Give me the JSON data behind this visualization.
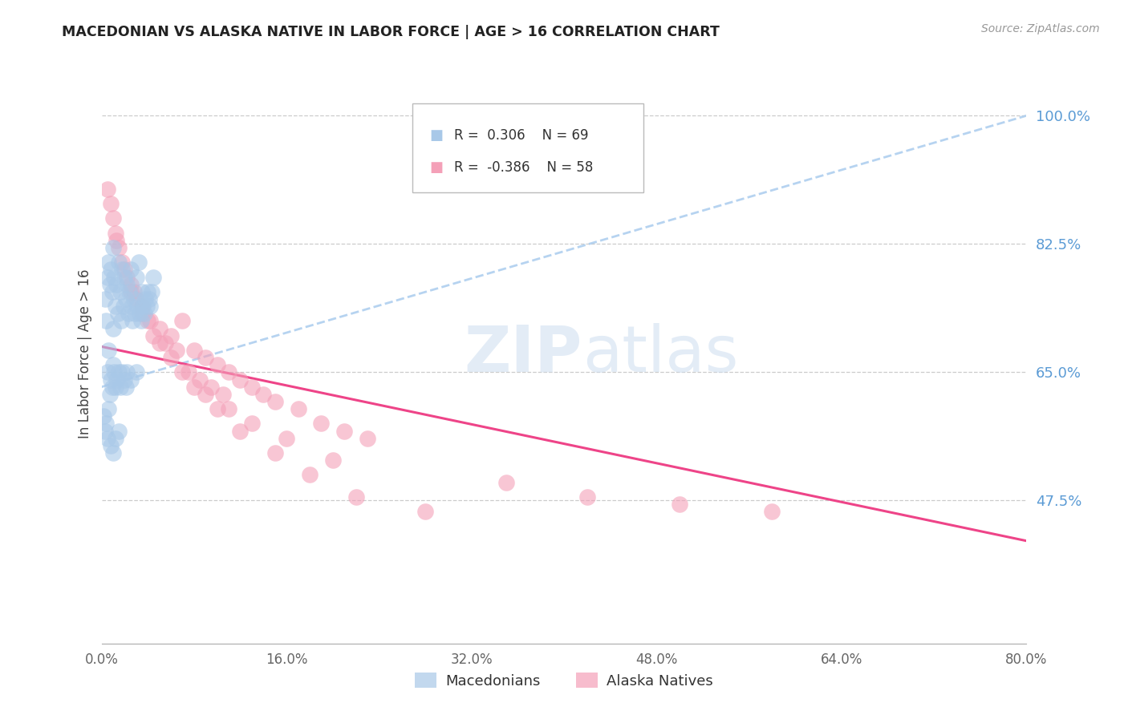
{
  "title": "MACEDONIAN VS ALASKA NATIVE IN LABOR FORCE | AGE > 16 CORRELATION CHART",
  "source": "Source: ZipAtlas.com",
  "ylabel": "In Labor Force | Age > 16",
  "watermark_zip": "ZIP",
  "watermark_atlas": "atlas",
  "xmin": 0.0,
  "xmax": 80.0,
  "ymin": 28.0,
  "ymax": 107.0,
  "yticks": [
    47.5,
    65.0,
    82.5,
    100.0
  ],
  "xticks": [
    0.0,
    16.0,
    32.0,
    48.0,
    64.0,
    80.0
  ],
  "xtick_labels": [
    "0.0%",
    "16.0%",
    "32.0%",
    "48.0%",
    "64.0%",
    "80.0%"
  ],
  "macedonian_color": "#a8c8e8",
  "alaska_color": "#f4a0b8",
  "macedonian_line_color": "#3366cc",
  "alaska_line_color": "#ee4488",
  "r_macedonian": "0.306",
  "n_macedonian": "69",
  "r_alaska": "-0.386",
  "n_alaska": "58",
  "macedonian_label": "Macedonians",
  "alaska_label": "Alaska Natives",
  "axis_label_color": "#5b9bd5",
  "mac_trend_x0": 0.0,
  "mac_trend_y0": 63.0,
  "mac_trend_x1": 80.0,
  "mac_trend_y1": 100.0,
  "alaska_trend_x0": 0.0,
  "alaska_trend_y0": 68.5,
  "alaska_trend_x1": 80.0,
  "alaska_trend_y1": 42.0,
  "macedonians_x": [
    0.3,
    0.4,
    0.5,
    0.5,
    0.6,
    0.6,
    0.7,
    0.7,
    0.8,
    0.8,
    0.9,
    0.9,
    1.0,
    1.0,
    1.0,
    1.1,
    1.1,
    1.2,
    1.2,
    1.3,
    1.3,
    1.4,
    1.5,
    1.5,
    1.6,
    1.6,
    1.7,
    1.8,
    1.8,
    1.9,
    2.0,
    2.0,
    2.1,
    2.1,
    2.2,
    2.2,
    2.3,
    2.4,
    2.5,
    2.5,
    2.6,
    2.7,
    2.8,
    2.9,
    3.0,
    3.0,
    3.1,
    3.2,
    3.3,
    3.4,
    3.5,
    3.6,
    3.7,
    3.8,
    3.9,
    4.0,
    4.1,
    4.2,
    4.3,
    4.5,
    0.2,
    0.3,
    0.4,
    0.5,
    0.6,
    0.8,
    1.0,
    1.2,
    1.5
  ],
  "macedonians_y": [
    75.0,
    72.0,
    78.0,
    65.0,
    80.0,
    68.0,
    77.0,
    62.0,
    79.0,
    64.0,
    76.0,
    63.0,
    82.0,
    66.0,
    71.0,
    78.0,
    65.0,
    74.0,
    63.0,
    77.0,
    64.0,
    73.0,
    80.0,
    65.0,
    76.0,
    63.0,
    72.0,
    79.0,
    65.0,
    74.0,
    78.0,
    64.0,
    75.0,
    63.0,
    77.0,
    65.0,
    73.0,
    76.0,
    79.0,
    64.0,
    74.0,
    72.0,
    75.0,
    73.0,
    78.0,
    65.0,
    74.0,
    80.0,
    73.0,
    72.0,
    76.0,
    74.0,
    73.0,
    75.0,
    74.0,
    76.0,
    75.0,
    74.0,
    76.0,
    78.0,
    59.0,
    57.0,
    58.0,
    56.0,
    60.0,
    55.0,
    54.0,
    56.0,
    57.0
  ],
  "alaska_x": [
    0.5,
    0.8,
    1.2,
    1.5,
    2.0,
    2.5,
    3.0,
    3.5,
    4.0,
    5.0,
    6.0,
    7.0,
    8.0,
    9.0,
    10.0,
    11.0,
    12.0,
    13.0,
    14.0,
    15.0,
    17.0,
    19.0,
    21.0,
    23.0,
    1.0,
    1.8,
    2.8,
    4.2,
    5.5,
    6.5,
    7.5,
    8.5,
    9.5,
    10.5,
    1.3,
    2.2,
    3.5,
    5.0,
    7.0,
    9.0,
    11.0,
    13.0,
    16.0,
    20.0,
    2.5,
    4.5,
    6.0,
    8.0,
    10.0,
    12.0,
    15.0,
    18.0,
    22.0,
    28.0,
    35.0,
    42.0,
    50.0,
    58.0
  ],
  "alaska_y": [
    90.0,
    88.0,
    84.0,
    82.0,
    79.0,
    77.0,
    75.0,
    74.0,
    72.0,
    71.0,
    70.0,
    72.0,
    68.0,
    67.0,
    66.0,
    65.0,
    64.0,
    63.0,
    62.0,
    61.0,
    60.0,
    58.0,
    57.0,
    56.0,
    86.0,
    80.0,
    76.0,
    72.0,
    69.0,
    68.0,
    65.0,
    64.0,
    63.0,
    62.0,
    83.0,
    78.0,
    73.0,
    69.0,
    65.0,
    62.0,
    60.0,
    58.0,
    56.0,
    53.0,
    76.0,
    70.0,
    67.0,
    63.0,
    60.0,
    57.0,
    54.0,
    51.0,
    48.0,
    46.0,
    50.0,
    48.0,
    47.0,
    46.0
  ]
}
